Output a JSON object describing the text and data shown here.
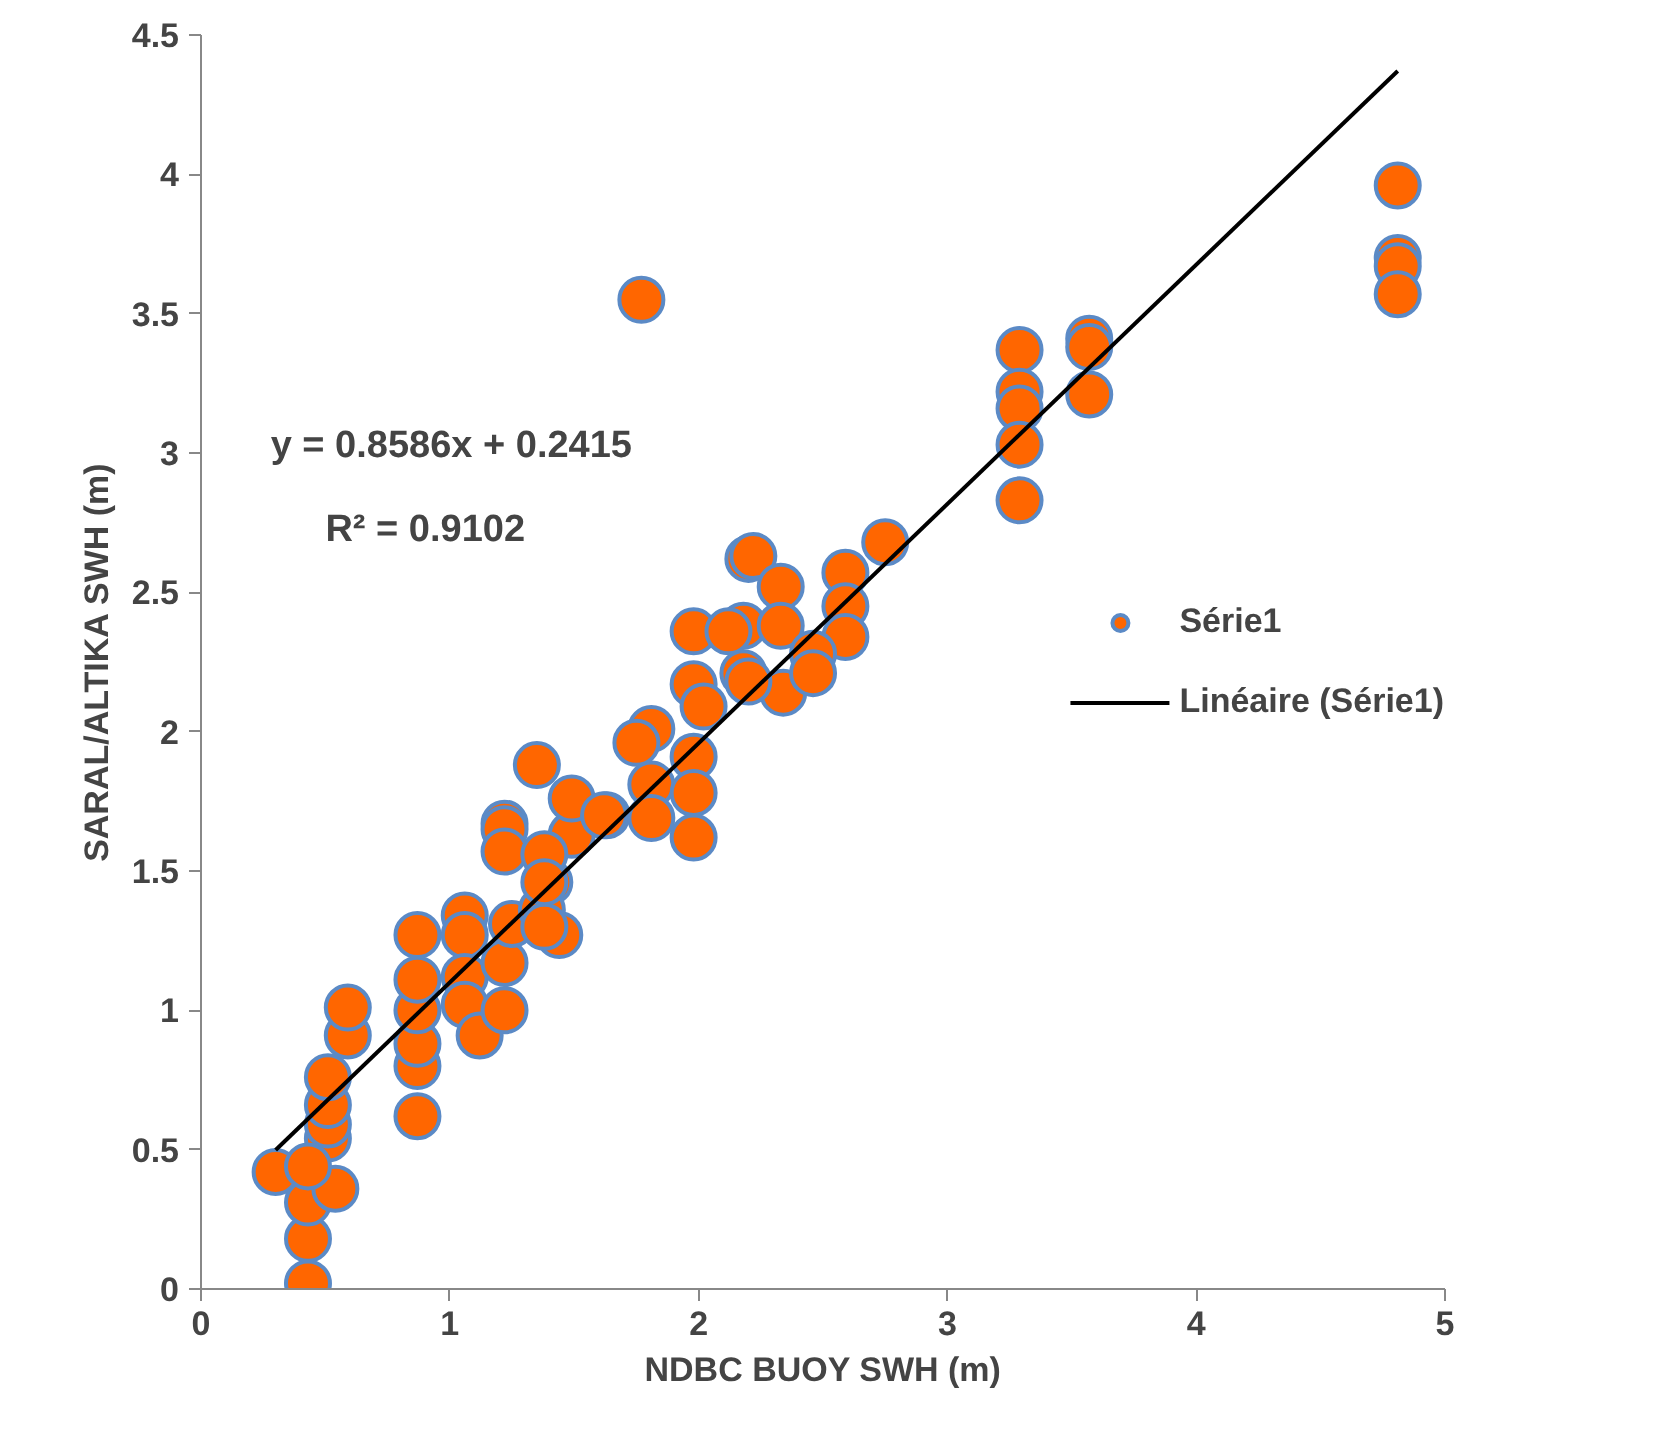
{
  "chart_data": {
    "type": "scatter",
    "xlabel": "NDBC BUOY SWH (m)",
    "ylabel": "SARAL/ALTIKA SWH (m)",
    "annotations": [
      "y = 0.8586x + 0.2415",
      "R² = 0.9102"
    ],
    "xlim": [
      0,
      5
    ],
    "xticks": [
      0,
      1,
      2,
      3,
      4,
      5
    ],
    "ylim": [
      0,
      4.5
    ],
    "yticks": [
      0,
      0.5,
      1,
      1.5,
      2,
      2.5,
      3,
      3.5,
      4,
      4.5
    ],
    "grid": false,
    "legend": "right",
    "series": [
      {
        "name": "Série1",
        "color": "#ff6600",
        "marker": "circle",
        "x": [
          0.3,
          0.43,
          0.43,
          0.43,
          0.54,
          0.51,
          0.51,
          0.51,
          0.51,
          0.59,
          0.59,
          0.43,
          0.87,
          0.87,
          0.87,
          0.87,
          0.87,
          0.87,
          1.06,
          1.06,
          1.06,
          1.06,
          1.12,
          1.22,
          1.22,
          1.25,
          1.4,
          1.44,
          1.37,
          1.22,
          1.49,
          1.63,
          1.35,
          1.49,
          1.22,
          1.22,
          1.38,
          1.38,
          1.38,
          1.62,
          1.81,
          1.81,
          1.81,
          1.98,
          1.98,
          1.98,
          1.98,
          1.98,
          1.75,
          2.02,
          2.18,
          2.18,
          2.2,
          1.77,
          2.22,
          2.33,
          2.33,
          2.34,
          2.59,
          2.59,
          2.59,
          2.75,
          2.12,
          2.46,
          2.46,
          2.2,
          3.29,
          3.29,
          3.29,
          3.29,
          3.29,
          3.57,
          3.57,
          3.57,
          4.81,
          4.81,
          4.81,
          4.81
        ],
        "values": [
          0.42,
          0.02,
          0.18,
          0.31,
          0.36,
          0.54,
          0.59,
          0.66,
          0.76,
          0.91,
          1.01,
          0.44,
          0.62,
          0.8,
          0.88,
          1.0,
          1.11,
          1.27,
          1.34,
          1.27,
          1.12,
          1.02,
          0.91,
          1.0,
          1.17,
          1.31,
          1.46,
          1.27,
          1.36,
          1.67,
          1.63,
          1.7,
          1.88,
          1.76,
          1.65,
          1.57,
          1.56,
          1.46,
          1.3,
          1.7,
          2.01,
          1.81,
          1.69,
          2.36,
          2.17,
          1.91,
          1.78,
          1.62,
          1.96,
          2.09,
          2.38,
          2.21,
          2.62,
          3.55,
          2.63,
          2.52,
          2.38,
          2.14,
          2.57,
          2.45,
          2.34,
          2.68,
          2.36,
          2.28,
          2.21,
          2.18,
          3.37,
          3.22,
          3.16,
          3.03,
          2.83,
          3.41,
          3.38,
          3.21,
          3.96,
          3.7,
          3.67,
          3.57
        ]
      },
      {
        "name": "Linéaire (Série1)",
        "type": "line",
        "color": "#000000",
        "x": [
          0.3,
          4.81
        ],
        "values": [
          0.499,
          4.371
        ]
      }
    ]
  }
}
